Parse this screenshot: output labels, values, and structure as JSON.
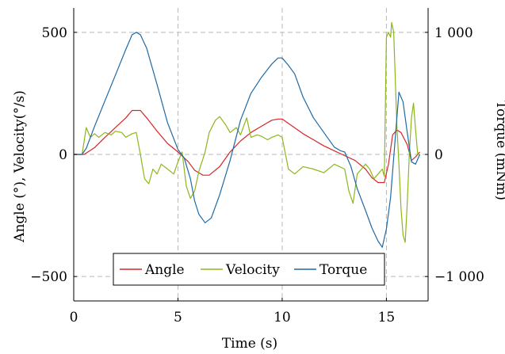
{
  "chart_data": {
    "type": "line",
    "xlabel": "Time (s)",
    "ylabel_left": "Angle (°), Velocity(°/s)",
    "ylabel_right": "Torque (mNm)",
    "xlim": [
      0,
      17
    ],
    "ylim_left": [
      -600,
      600
    ],
    "ylim_right": [
      -1200,
      1200
    ],
    "x_ticks": [
      0,
      5,
      10,
      15
    ],
    "x_tick_labels": [
      "0",
      "5",
      "10",
      "15"
    ],
    "y_ticks_left": [
      -500,
      0,
      500
    ],
    "y_tick_labels_left": [
      "−500",
      "0",
      "500"
    ],
    "y_ticks_right": [
      -1000,
      0,
      1000
    ],
    "y_tick_labels_right": [
      "−1 000",
      "0",
      "1 000"
    ],
    "grid": "dashed at tick positions",
    "legend_position": "bottom-center",
    "legend_layout": "horizontal",
    "series": [
      {
        "name": "Angle",
        "axis": "left",
        "color": "#d62728",
        "x": [
          0,
          0.5,
          1.0,
          1.5,
          2.0,
          2.5,
          2.8,
          3.2,
          3.5,
          4.0,
          4.5,
          5.0,
          5.5,
          5.8,
          6.2,
          6.5,
          7.0,
          7.5,
          8.0,
          8.5,
          9.0,
          9.5,
          9.8,
          10.0,
          10.5,
          11.0,
          11.5,
          12.0,
          12.5,
          13.0,
          13.5,
          14.0,
          14.3,
          14.6,
          14.9,
          15.1,
          15.3,
          15.5,
          15.7,
          16.0,
          16.2,
          16.4,
          16.6
        ],
        "y": [
          0,
          0,
          28,
          70,
          110,
          150,
          180,
          180,
          150,
          95,
          45,
          10,
          -30,
          -65,
          -85,
          -85,
          -50,
          10,
          55,
          90,
          115,
          140,
          145,
          145,
          115,
          85,
          60,
          35,
          15,
          -5,
          -25,
          -60,
          -95,
          -115,
          -115,
          -40,
          80,
          100,
          90,
          40,
          -25,
          -10,
          10
        ]
      },
      {
        "name": "Velocity",
        "axis": "left",
        "color": "#8db61c",
        "x": [
          0,
          0.4,
          0.6,
          0.8,
          1.0,
          1.2,
          1.5,
          1.8,
          2.0,
          2.3,
          2.5,
          2.8,
          3.0,
          3.2,
          3.4,
          3.6,
          3.8,
          4.0,
          4.2,
          4.5,
          4.8,
          5.0,
          5.2,
          5.4,
          5.6,
          5.8,
          6.0,
          6.3,
          6.5,
          6.8,
          7.0,
          7.3,
          7.5,
          7.8,
          8.0,
          8.3,
          8.5,
          8.8,
          9.0,
          9.3,
          9.5,
          9.8,
          10.0,
          10.3,
          10.6,
          11.0,
          11.5,
          12.0,
          12.5,
          13.0,
          13.2,
          13.4,
          13.6,
          13.8,
          14.0,
          14.2,
          14.4,
          14.6,
          14.8,
          14.9,
          15.0,
          15.1,
          15.2,
          15.25,
          15.35,
          15.5,
          15.6,
          15.7,
          15.8,
          15.9,
          16.0,
          16.1,
          16.2,
          16.3,
          16.4,
          16.5,
          16.6
        ],
        "y": [
          0,
          0,
          110,
          70,
          85,
          70,
          90,
          80,
          95,
          90,
          70,
          85,
          90,
          0,
          -100,
          -120,
          -60,
          -80,
          -40,
          -60,
          -80,
          -30,
          10,
          -130,
          -180,
          -150,
          -70,
          10,
          90,
          140,
          155,
          120,
          90,
          110,
          80,
          150,
          70,
          80,
          75,
          60,
          70,
          80,
          70,
          -60,
          -80,
          -50,
          -60,
          -75,
          -40,
          -60,
          -150,
          -200,
          -80,
          -60,
          -40,
          -60,
          -100,
          -80,
          -60,
          -90,
          480,
          500,
          480,
          540,
          500,
          120,
          -40,
          -220,
          -330,
          -360,
          -200,
          0,
          150,
          210,
          100,
          0,
          0
        ]
      },
      {
        "name": "Torque",
        "axis": "right",
        "color": "#1f6aa5",
        "x": [
          0,
          0.4,
          0.6,
          1.0,
          1.5,
          2.0,
          2.5,
          2.8,
          3.0,
          3.2,
          3.5,
          4.0,
          4.5,
          5.0,
          5.3,
          5.6,
          5.8,
          6.0,
          6.3,
          6.6,
          7.0,
          7.5,
          8.0,
          8.5,
          9.0,
          9.5,
          9.8,
          10.0,
          10.3,
          10.6,
          11.0,
          11.5,
          12.0,
          12.5,
          12.8,
          13.0,
          13.3,
          13.6,
          14.0,
          14.3,
          14.6,
          14.8,
          15.0,
          15.2,
          15.4,
          15.6,
          15.8,
          16.0,
          16.2,
          16.4,
          16.6
        ],
        "y": [
          0,
          0,
          50,
          230,
          440,
          650,
          860,
          980,
          1000,
          980,
          870,
          570,
          260,
          40,
          -30,
          -200,
          -380,
          -490,
          -560,
          -520,
          -330,
          -50,
          280,
          500,
          630,
          740,
          790,
          790,
          730,
          660,
          470,
          300,
          180,
          60,
          30,
          20,
          -100,
          -280,
          -460,
          -600,
          -710,
          -760,
          -610,
          -350,
          80,
          510,
          430,
          180,
          -60,
          -80,
          0
        ]
      }
    ]
  }
}
